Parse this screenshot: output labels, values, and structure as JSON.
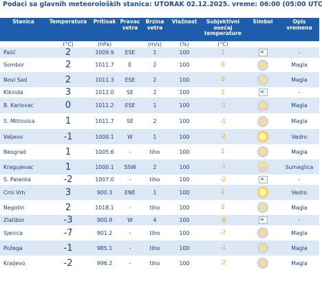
{
  "heading": "Podaci sa glavnih meteoroloških stanica:  UTORAK 02.12.2025.  vreme: 06:00 (05:00 UTC)",
  "columns": {
    "station": "Stanica",
    "temperature": "Temperatura",
    "pressure": "Pritisak",
    "wind_dir": "Pravac vetra",
    "wind_speed": "Brzina vetra",
    "humidity": "Vlažnost",
    "feels_like": "Subjektivni osećaj temperature",
    "symbol": "Simbol",
    "description": "Opis vremena"
  },
  "units": {
    "temperature": "(°C)",
    "pressure": "(hPa)",
    "wind_speed": "(m/s)",
    "humidity": "(%)",
    "feels_like": "(°C)"
  },
  "rows": [
    {
      "station": "Palić",
      "temp": "2",
      "pressure": "1009.9",
      "dir": "ESE",
      "speed": "1",
      "hum": "100",
      "feel": "1",
      "symbol": "broken-image-icon",
      "desc": "-"
    },
    {
      "station": "Sombor",
      "temp": "2",
      "pressure": "1011.7",
      "dir": "E",
      "speed": "2",
      "hum": "100",
      "feel": "0",
      "symbol": "fog-icon",
      "desc": "Magla"
    },
    {
      "station": "Novi Sad",
      "temp": "2",
      "pressure": "1011.3",
      "dir": "ESE",
      "speed": "2",
      "hum": "100",
      "feel": "0",
      "symbol": "fog-icon",
      "desc": "Magla"
    },
    {
      "station": "Kikinda",
      "temp": "3",
      "pressure": "1012.0",
      "dir": "SE",
      "speed": "2",
      "hum": "100",
      "feel": "1",
      "symbol": "broken-image-icon",
      "desc": "-"
    },
    {
      "station": "B. Karlovac",
      "temp": "0",
      "pressure": "1011.2",
      "dir": "ESE",
      "speed": "1",
      "hum": "100",
      "feel": "-1",
      "symbol": "fog-icon",
      "desc": "Magla"
    },
    {
      "station": "S. Mitrovica",
      "temp": "1",
      "pressure": "1011.7",
      "dir": "SE",
      "speed": "2",
      "hum": "100",
      "feel": "-1",
      "symbol": "fog-icon",
      "desc": "Magla"
    },
    {
      "station": "Valjevo",
      "temp": "-1",
      "pressure": "1000.1",
      "dir": "W",
      "speed": "1",
      "hum": "100",
      "feel": "-2",
      "symbol": "clear-icon",
      "desc": "Vedro"
    },
    {
      "station": "Beograd",
      "temp": "1",
      "pressure": "1005.6",
      "dir": "-",
      "speed": "tiho",
      "hum": "100",
      "feel": "1",
      "symbol": "fog-icon",
      "desc": "Magla"
    },
    {
      "station": "Kragujevac",
      "temp": "1",
      "pressure": "1000.1",
      "dir": "SSW",
      "speed": "2",
      "hum": "100",
      "feel": "-1",
      "symbol": "mist-icon",
      "desc": "Sumaglica"
    },
    {
      "station": "S. Palanka",
      "temp": "-2",
      "pressure": "1007.0",
      "dir": "-",
      "speed": "tiho",
      "hum": "100",
      "feel": "-2",
      "symbol": "broken-image-icon",
      "desc": "-"
    },
    {
      "station": "Crni Vrh",
      "temp": "3",
      "pressure": "900.3",
      "dir": "ENE",
      "speed": "1",
      "hum": "100",
      "feel": "2",
      "symbol": "clear-icon",
      "desc": "Vedro"
    },
    {
      "station": "Negotin",
      "temp": "2",
      "pressure": "1018.1",
      "dir": "-",
      "speed": "tiho",
      "hum": "100",
      "feel": "2",
      "symbol": "fog-icon",
      "desc": "Magla"
    },
    {
      "station": "Zlatibor",
      "temp": "-3",
      "pressure": "900.9",
      "dir": "W",
      "speed": "4",
      "hum": "100",
      "feel": "-8",
      "symbol": "broken-image-icon",
      "desc": "-"
    },
    {
      "station": "Sjenica",
      "temp": "-7",
      "pressure": "901.2",
      "dir": "-",
      "speed": "tiho",
      "hum": "100",
      "feel": "-7",
      "symbol": "fog-icon",
      "desc": "Magla"
    },
    {
      "station": "Požega",
      "temp": "-1",
      "pressure": "985.1",
      "dir": "-",
      "speed": "tiho",
      "hum": "100",
      "feel": "-1",
      "symbol": "fog-icon",
      "desc": "Magla"
    },
    {
      "station": "Kraljevo",
      "temp": "-2",
      "pressure": "996.2",
      "dir": "-",
      "speed": "tiho",
      "hum": "100",
      "feel": "-2",
      "symbol": "fog-icon",
      "desc": "Magla"
    }
  ]
}
